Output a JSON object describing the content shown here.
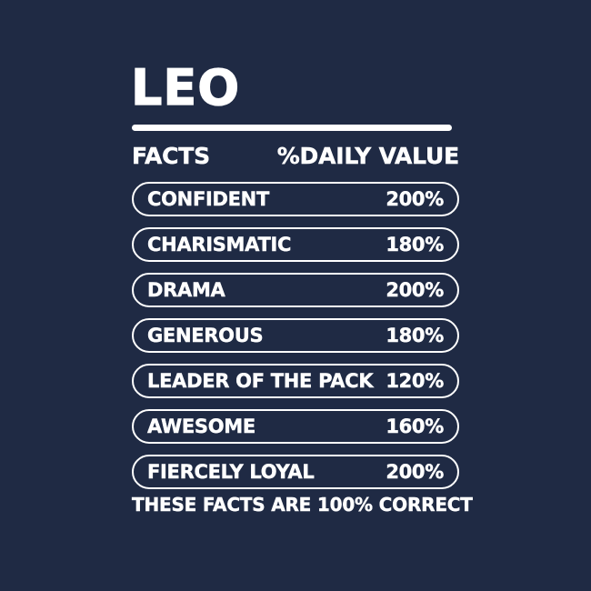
{
  "design": {
    "background_color": "#1f2a44",
    "text_color": "#ffffff"
  },
  "title": "LEO",
  "header": {
    "facts_label": "FACTS",
    "daily_value_label": "%DAILY VALUE"
  },
  "rows": [
    {
      "label": "CONFIDENT",
      "value": "200%"
    },
    {
      "label": "CHARISMATIC",
      "value": "180%"
    },
    {
      "label": "DRAMA",
      "value": "200%"
    },
    {
      "label": "GENEROUS",
      "value": "180%"
    },
    {
      "label": "LEADER OF THE PACK",
      "value": "120%"
    },
    {
      "label": "AWESOME",
      "value": "160%"
    },
    {
      "label": "FIERCELY LOYAL",
      "value": "200%"
    }
  ],
  "footer": "THESE FACTS ARE 100% CORRECT"
}
